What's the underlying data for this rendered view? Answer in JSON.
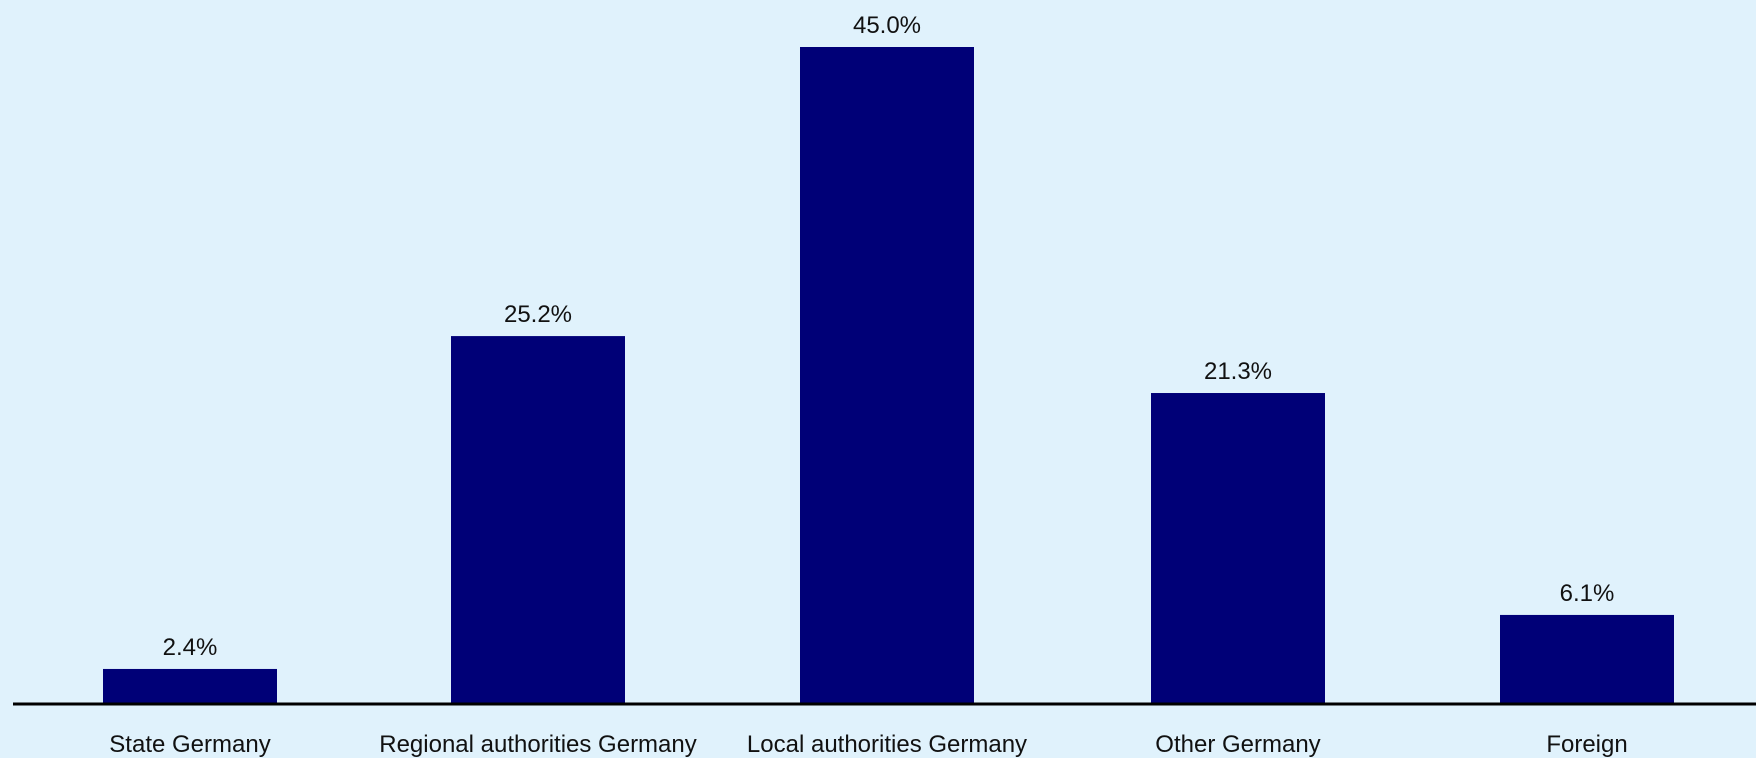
{
  "chart_data": {
    "type": "bar",
    "categories": [
      "State Germany",
      "Regional authorities Germany",
      "Local authorities Germany",
      "Other Germany",
      "Foreign"
    ],
    "values": [
      2.4,
      25.2,
      45.0,
      21.3,
      6.1
    ],
    "value_labels": [
      "2.4%",
      "25.2%",
      "45.0%",
      "21.3%",
      "6.1%"
    ],
    "title": "",
    "xlabel": "",
    "ylabel": "",
    "ylim": [
      0,
      45
    ],
    "grid": false,
    "colors": {
      "bar": "#000077",
      "background": "#e0f2fc",
      "axis": "#000000",
      "text": "#111111"
    }
  }
}
